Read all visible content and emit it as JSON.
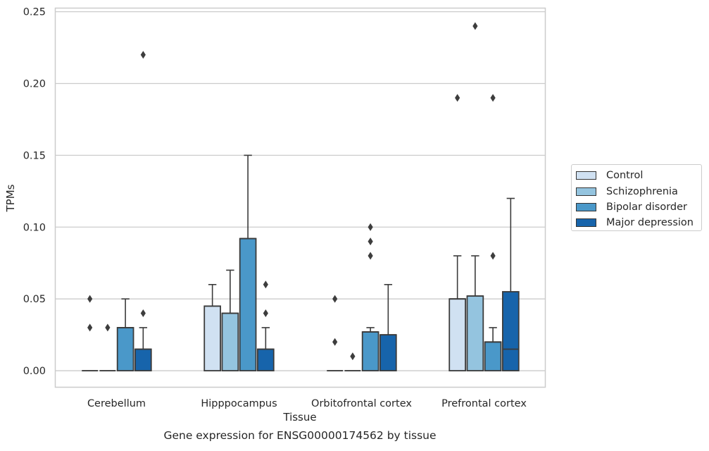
{
  "chart_data": {
    "type": "box",
    "title": "Gene expression for ENSG00000174562 by tissue",
    "xlabel": "Tissue",
    "ylabel": "TPMs",
    "ylim": [
      -0.0115,
      0.2525
    ],
    "yticks": [
      "0.00",
      "0.05",
      "0.10",
      "0.15",
      "0.20",
      "0.25"
    ],
    "grid": "horizontal",
    "legend_position": "outside right",
    "categories": [
      "Cerebellum",
      "Hipppocampus",
      "Orbitofrontal cortex",
      "Prefrontal cortex"
    ],
    "series": [
      {
        "name": "Control",
        "color": "#d0e1f2",
        "boxes": [
          {
            "q1": 0,
            "median": 0,
            "q3": 0,
            "whisker_low": 0,
            "whisker_high": 0,
            "outliers": [
              0.05,
              0.03
            ]
          },
          {
            "q1": 0,
            "median": 0.045,
            "q3": 0.045,
            "whisker_low": 0,
            "whisker_high": 0.06,
            "outliers": []
          },
          {
            "q1": 0,
            "median": 0,
            "q3": 0,
            "whisker_low": 0,
            "whisker_high": 0,
            "outliers": [
              0.05,
              0.02
            ]
          },
          {
            "q1": 0,
            "median": 0.05,
            "q3": 0.05,
            "whisker_low": 0,
            "whisker_high": 0.08,
            "outliers": [
              0.19
            ]
          }
        ]
      },
      {
        "name": "Schizophrenia",
        "color": "#94c4df",
        "boxes": [
          {
            "q1": 0,
            "median": 0,
            "q3": 0,
            "whisker_low": 0,
            "whisker_high": 0,
            "outliers": [
              0.03
            ]
          },
          {
            "q1": 0,
            "median": 0.04,
            "q3": 0.04,
            "whisker_low": 0,
            "whisker_high": 0.07,
            "outliers": []
          },
          {
            "q1": 0,
            "median": 0,
            "q3": 0,
            "whisker_low": 0,
            "whisker_high": 0,
            "outliers": [
              0.01
            ]
          },
          {
            "q1": 0,
            "median": 0.052,
            "q3": 0.052,
            "whisker_low": 0,
            "whisker_high": 0.08,
            "outliers": [
              0.24
            ]
          }
        ]
      },
      {
        "name": "Bipolar disorder",
        "color": "#4a98c9",
        "boxes": [
          {
            "q1": 0,
            "median": 0.03,
            "q3": 0.03,
            "whisker_low": 0,
            "whisker_high": 0.05,
            "outliers": []
          },
          {
            "q1": 0,
            "median": 0.092,
            "q3": 0.092,
            "whisker_low": 0,
            "whisker_high": 0.15,
            "outliers": []
          },
          {
            "q1": 0,
            "median": 0.027,
            "q3": 0.027,
            "whisker_low": 0,
            "whisker_high": 0.03,
            "outliers": [
              0.1,
              0.09,
              0.08
            ]
          },
          {
            "q1": 0,
            "median": 0.02,
            "q3": 0.02,
            "whisker_low": 0,
            "whisker_high": 0.03,
            "outliers": [
              0.19,
              0.08
            ]
          }
        ]
      },
      {
        "name": "Major depression",
        "color": "#1764ab",
        "boxes": [
          {
            "q1": 0,
            "median": 0.015,
            "q3": 0.015,
            "whisker_low": 0,
            "whisker_high": 0.03,
            "outliers": [
              0.22,
              0.04
            ]
          },
          {
            "q1": 0,
            "median": 0.015,
            "q3": 0.015,
            "whisker_low": 0,
            "whisker_high": 0.03,
            "outliers": [
              0.06,
              0.04
            ]
          },
          {
            "q1": 0,
            "median": 0.025,
            "q3": 0.025,
            "whisker_low": 0,
            "whisker_high": 0.06,
            "outliers": []
          },
          {
            "q1": 0,
            "median": 0.015,
            "q3": 0.055,
            "whisker_low": 0,
            "whisker_high": 0.12,
            "outliers": []
          }
        ]
      }
    ]
  }
}
